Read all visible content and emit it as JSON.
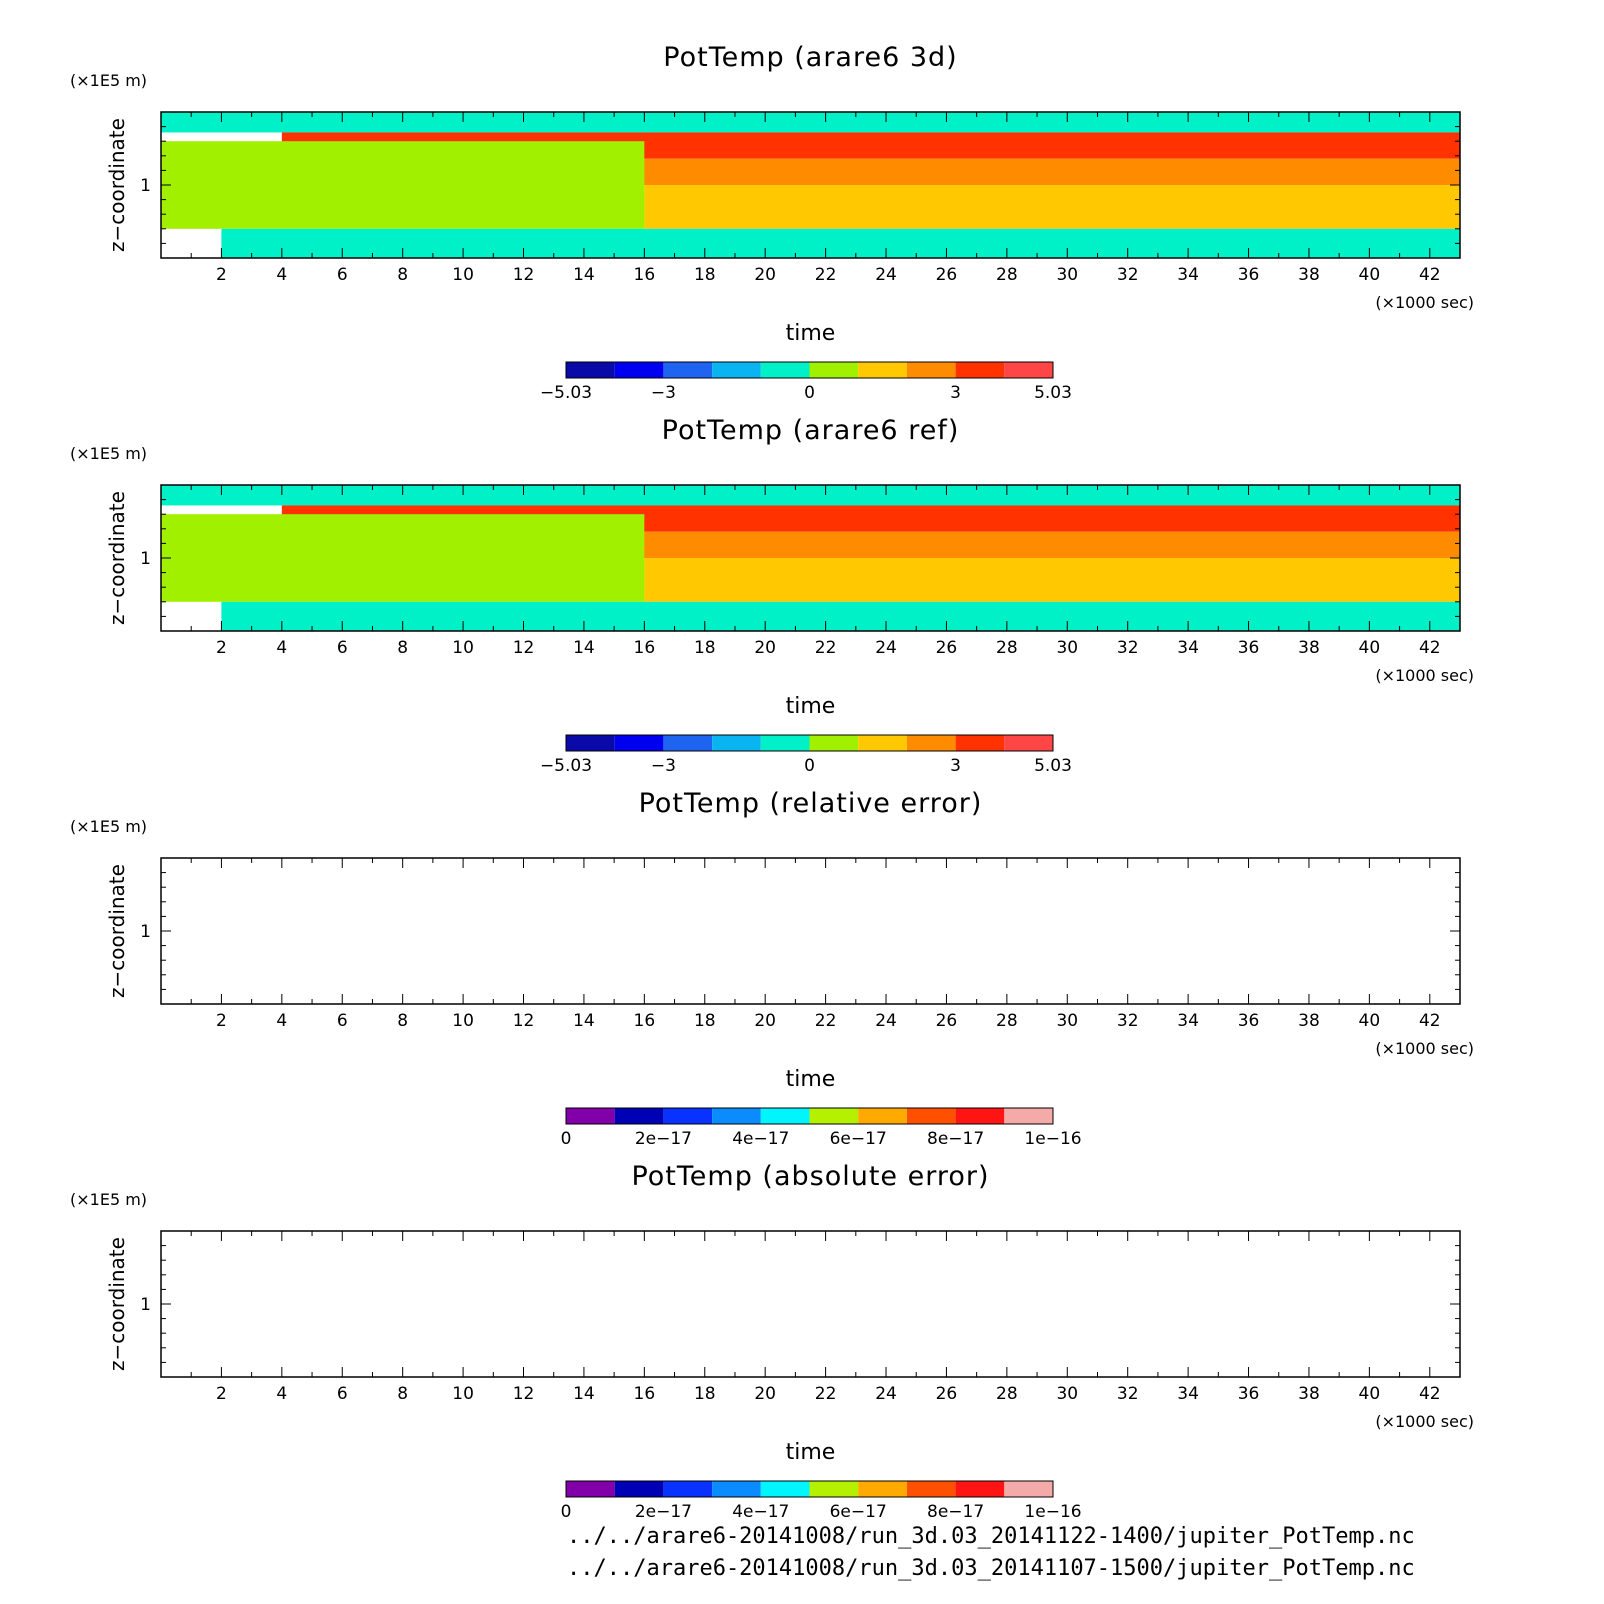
{
  "chart_data": [
    {
      "type": "heatmap",
      "title": "PotTemp (arare6 3d)",
      "xlabel": "time",
      "x_unit": "(×1000 sec)",
      "ylabel": "z−coordinate",
      "y_unit": "(×1E5 m)",
      "xlim": [
        0,
        43
      ],
      "ylim": [
        0.5,
        1.5
      ],
      "x_ticks": [
        "2",
        "4",
        "6",
        "8",
        "10",
        "12",
        "14",
        "16",
        "18",
        "20",
        "22",
        "24",
        "26",
        "28",
        "30",
        "32",
        "34",
        "36",
        "38",
        "40",
        "42"
      ],
      "y_ticks": [
        "1"
      ],
      "colorbar": {
        "ticks": [
          "−5.03",
          "−3",
          "0",
          "3",
          "5.03"
        ],
        "colors": [
          "#0a0aa8",
          "#0000f0",
          "#1e64f0",
          "#0ab4f0",
          "#00f0c8",
          "#a0f000",
          "#ffc800",
          "#ff8c00",
          "#ff3200",
          "#ff4646"
        ]
      },
      "field": [
        {
          "z_range": [
            1.36,
            1.5
          ],
          "time_range": [
            0,
            43
          ],
          "level": "0"
        },
        {
          "z_range": [
            1.18,
            1.36
          ],
          "time_range": [
            4,
            43
          ],
          "level": "5.03"
        },
        {
          "z_range": [
            1.0,
            1.18
          ],
          "time_range": [
            4,
            43
          ],
          "level": "3"
        },
        {
          "z_range": [
            0.7,
            1.0
          ],
          "time_range": [
            16,
            43
          ],
          "level": "2"
        },
        {
          "z_range": [
            0.7,
            1.3
          ],
          "time_range": [
            0,
            16
          ],
          "level": "1"
        },
        {
          "z_range": [
            0.5,
            0.7
          ],
          "time_range": [
            2,
            43
          ],
          "level": "0"
        }
      ]
    },
    {
      "type": "heatmap",
      "title": "PotTemp (arare6 ref)",
      "xlabel": "time",
      "x_unit": "(×1000 sec)",
      "ylabel": "z−coordinate",
      "y_unit": "(×1E5 m)",
      "xlim": [
        0,
        43
      ],
      "ylim": [
        0.5,
        1.5
      ],
      "x_ticks": [
        "2",
        "4",
        "6",
        "8",
        "10",
        "12",
        "14",
        "16",
        "18",
        "20",
        "22",
        "24",
        "26",
        "28",
        "30",
        "32",
        "34",
        "36",
        "38",
        "40",
        "42"
      ],
      "y_ticks": [
        "1"
      ],
      "colorbar": {
        "ticks": [
          "−5.03",
          "−3",
          "0",
          "3",
          "5.03"
        ],
        "colors": [
          "#0a0aa8",
          "#0000f0",
          "#1e64f0",
          "#0ab4f0",
          "#00f0c8",
          "#a0f000",
          "#ffc800",
          "#ff8c00",
          "#ff3200",
          "#ff4646"
        ]
      },
      "field": [
        {
          "z_range": [
            1.36,
            1.5
          ],
          "time_range": [
            0,
            43
          ],
          "level": "0"
        },
        {
          "z_range": [
            1.18,
            1.36
          ],
          "time_range": [
            4,
            43
          ],
          "level": "5.03"
        },
        {
          "z_range": [
            1.0,
            1.18
          ],
          "time_range": [
            4,
            43
          ],
          "level": "3"
        },
        {
          "z_range": [
            0.7,
            1.0
          ],
          "time_range": [
            16,
            43
          ],
          "level": "2"
        },
        {
          "z_range": [
            0.7,
            1.3
          ],
          "time_range": [
            0,
            16
          ],
          "level": "1"
        },
        {
          "z_range": [
            0.5,
            0.7
          ],
          "time_range": [
            2,
            43
          ],
          "level": "0"
        }
      ]
    },
    {
      "type": "heatmap",
      "title": "PotTemp (relative error)",
      "xlabel": "time",
      "x_unit": "(×1000 sec)",
      "ylabel": "z−coordinate",
      "y_unit": "(×1E5 m)",
      "xlim": [
        0,
        43
      ],
      "ylim": [
        0.5,
        1.5
      ],
      "x_ticks": [
        "2",
        "4",
        "6",
        "8",
        "10",
        "12",
        "14",
        "16",
        "18",
        "20",
        "22",
        "24",
        "26",
        "28",
        "30",
        "32",
        "34",
        "36",
        "38",
        "40",
        "42"
      ],
      "y_ticks": [
        "1"
      ],
      "colorbar": {
        "ticks": [
          "0",
          "2e−17",
          "4e−17",
          "6e−17",
          "8e−17",
          "1e−16"
        ],
        "colors": [
          "#8200aa",
          "#0000b4",
          "#0a32ff",
          "#0a8cff",
          "#00f5ff",
          "#b4f000",
          "#ffaa00",
          "#ff5000",
          "#ff1414",
          "#f5aaaa"
        ]
      },
      "field": []
    },
    {
      "type": "heatmap",
      "title": "PotTemp (absolute error)",
      "xlabel": "time",
      "x_unit": "(×1000 sec)",
      "ylabel": "z−coordinate",
      "y_unit": "(×1E5 m)",
      "xlim": [
        0,
        43
      ],
      "ylim": [
        0.5,
        1.5
      ],
      "x_ticks": [
        "2",
        "4",
        "6",
        "8",
        "10",
        "12",
        "14",
        "16",
        "18",
        "20",
        "22",
        "24",
        "26",
        "28",
        "30",
        "32",
        "34",
        "36",
        "38",
        "40",
        "42"
      ],
      "y_ticks": [
        "1"
      ],
      "colorbar": {
        "ticks": [
          "0",
          "2e−17",
          "4e−17",
          "6e−17",
          "8e−17",
          "1e−16"
        ],
        "colors": [
          "#8200aa",
          "#0000b4",
          "#0a32ff",
          "#0a8cff",
          "#00f5ff",
          "#b4f000",
          "#ffaa00",
          "#ff5000",
          "#ff1414",
          "#f5aaaa"
        ]
      },
      "field": []
    }
  ],
  "footer": {
    "path_1": "../../arare6-20141008/run_3d.03_20141122-1400/jupiter_PotTemp.nc",
    "path_2": "../../arare6-20141008/run_3d.03_20141107-1500/jupiter_PotTemp.nc"
  }
}
